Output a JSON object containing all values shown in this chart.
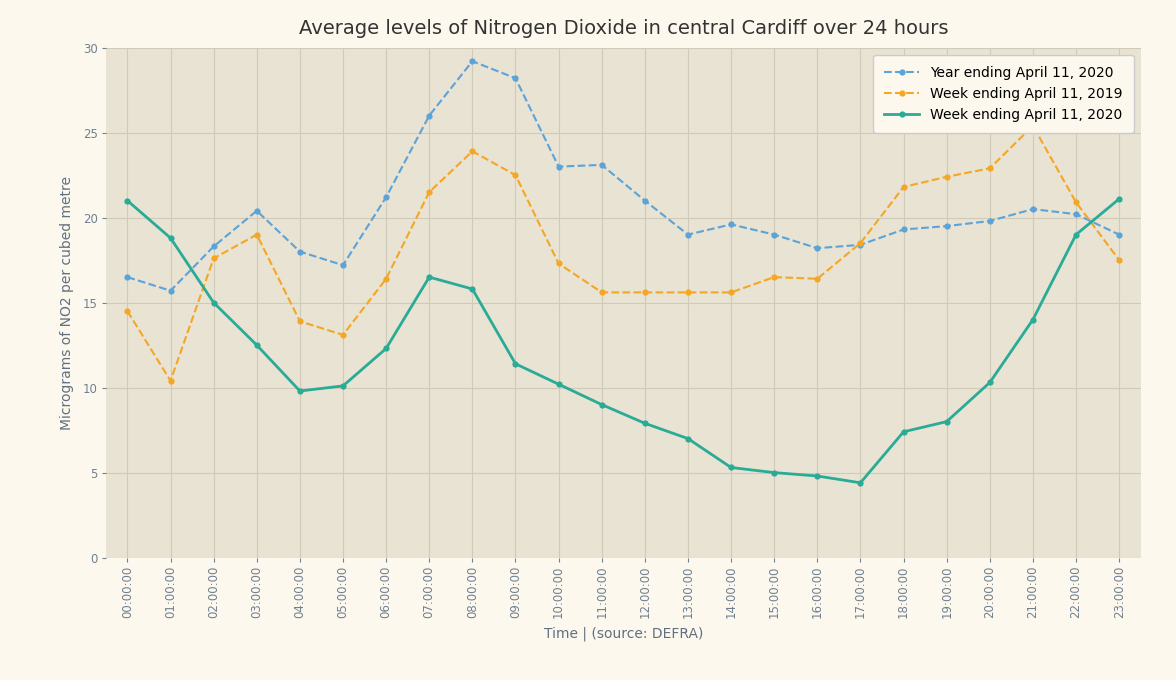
{
  "title": "Average levels of Nitrogen Dioxide in central Cardiff over 24 hours",
  "xlabel": "Time | (source: DEFRA)",
  "ylabel": "Micrograms of NO2 per cubed metre",
  "background_outer": "#fdf8ee",
  "background_inner": "#e8e3d3",
  "grid_color": "#d0cab8",
  "hours": [
    "00:00:00",
    "01:00:00",
    "02:00:00",
    "03:00:00",
    "04:00:00",
    "05:00:00",
    "06:00:00",
    "07:00:00",
    "08:00:00",
    "09:00:00",
    "10:00:00",
    "11:00:00",
    "12:00:00",
    "13:00:00",
    "14:00:00",
    "15:00:00",
    "16:00:00",
    "17:00:00",
    "18:00:00",
    "19:00:00",
    "20:00:00",
    "21:00:00",
    "22:00:00",
    "23:00:00"
  ],
  "year_2020": [
    16.5,
    15.7,
    18.3,
    20.4,
    18.0,
    17.2,
    21.2,
    26.0,
    29.2,
    28.2,
    23.0,
    23.1,
    21.0,
    19.0,
    19.6,
    19.0,
    18.2,
    18.4,
    19.3,
    19.5,
    19.8,
    20.5,
    20.2,
    19.0
  ],
  "week_2019": [
    14.5,
    10.4,
    17.6,
    19.0,
    13.9,
    13.1,
    16.4,
    21.5,
    23.9,
    22.5,
    17.3,
    15.6,
    15.6,
    15.6,
    15.6,
    16.5,
    16.4,
    18.5,
    21.8,
    22.4,
    22.9,
    25.4,
    20.9,
    17.5
  ],
  "week_2020": [
    21.0,
    18.8,
    15.0,
    12.5,
    9.8,
    10.1,
    12.3,
    16.5,
    15.8,
    11.4,
    10.2,
    9.0,
    7.9,
    7.0,
    5.3,
    5.0,
    4.8,
    4.4,
    7.4,
    8.0,
    10.3,
    14.0,
    19.0,
    21.1
  ],
  "color_year2020": "#5ba3d9",
  "color_week2019": "#f5a623",
  "color_week2020": "#2aab96",
  "ylim": [
    0,
    30
  ],
  "yticks": [
    0,
    5,
    10,
    15,
    20,
    25,
    30
  ],
  "legend_year2020": "Year ending April 11, 2020",
  "legend_week2019": "Week ending April 11, 2019",
  "legend_week2020": "Week ending April 11, 2020",
  "title_fontsize": 14,
  "label_fontsize": 10,
  "tick_fontsize": 8.5,
  "legend_fontsize": 10,
  "tick_color": "#708090",
  "label_color": "#607080",
  "title_color": "#333333"
}
